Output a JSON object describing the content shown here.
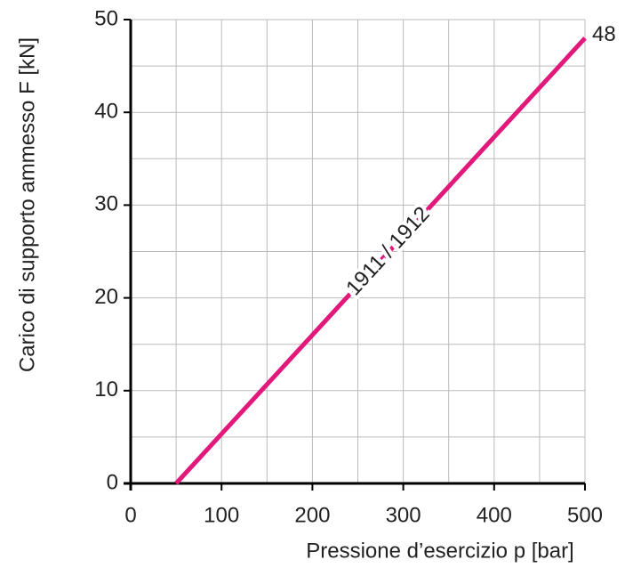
{
  "chart_data": {
    "type": "line",
    "x_label": "Pressione d’esercizio p [bar]",
    "y_label": "Carico di supporto ammesso F [kN]",
    "x": [
      50,
      500
    ],
    "series": [
      {
        "name": "1911 / 1912",
        "color": "#e2187a",
        "values": [
          0,
          48
        ]
      }
    ],
    "xlim": [
      0,
      500
    ],
    "xticks": [
      0,
      100,
      200,
      300,
      400,
      500
    ],
    "ylim": [
      0,
      50
    ],
    "yticks": [
      0,
      10,
      20,
      30,
      40,
      50
    ],
    "grid": true,
    "grid_step_x": 50,
    "grid_step_y": 5
  }
}
